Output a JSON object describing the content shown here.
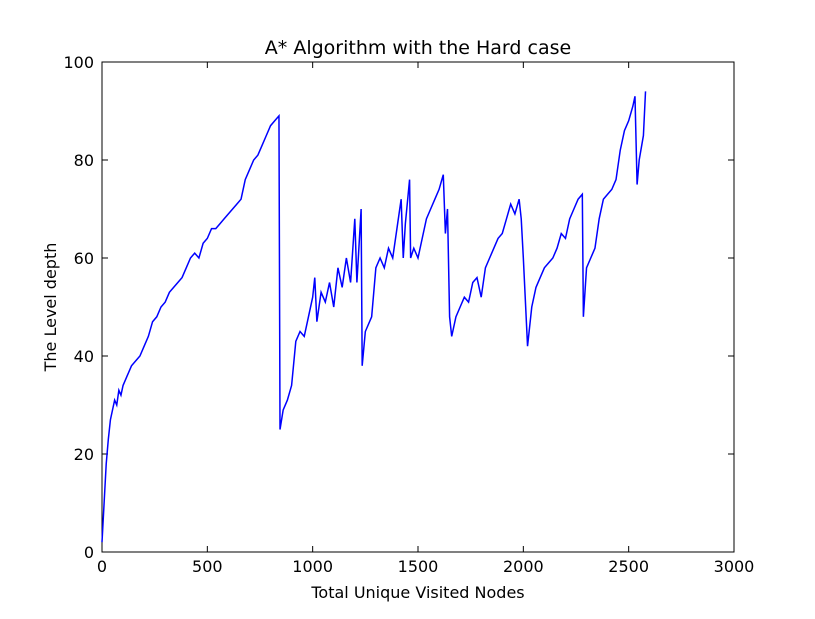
{
  "chart_data": {
    "type": "line",
    "title": "A* Algorithm with the Hard case",
    "xlabel": "Total Unique Visited Nodes",
    "ylabel": "The Level depth",
    "color": "#0000ff",
    "xlim": [
      0,
      3000
    ],
    "ylim": [
      0,
      100
    ],
    "xticks": [
      0,
      500,
      1000,
      1500,
      2000,
      2500,
      3000
    ],
    "yticks": [
      0,
      20,
      40,
      60,
      80,
      100
    ],
    "x": [
      0,
      10,
      20,
      30,
      40,
      50,
      60,
      70,
      80,
      90,
      100,
      120,
      140,
      160,
      180,
      200,
      220,
      240,
      260,
      280,
      300,
      320,
      340,
      360,
      380,
      400,
      420,
      440,
      460,
      480,
      500,
      520,
      540,
      560,
      580,
      600,
      620,
      640,
      660,
      680,
      700,
      720,
      740,
      760,
      780,
      800,
      820,
      840,
      845,
      860,
      880,
      900,
      920,
      940,
      960,
      980,
      1000,
      1010,
      1020,
      1040,
      1060,
      1080,
      1100,
      1120,
      1140,
      1160,
      1180,
      1200,
      1210,
      1230,
      1235,
      1250,
      1280,
      1300,
      1320,
      1340,
      1360,
      1380,
      1400,
      1420,
      1430,
      1440,
      1460,
      1465,
      1480,
      1500,
      1520,
      1540,
      1560,
      1580,
      1600,
      1620,
      1630,
      1640,
      1650,
      1660,
      1680,
      1700,
      1720,
      1740,
      1760,
      1780,
      1800,
      1820,
      1840,
      1860,
      1880,
      1900,
      1920,
      1940,
      1960,
      1980,
      1990,
      2000,
      2020,
      2040,
      2060,
      2080,
      2100,
      2120,
      2140,
      2160,
      2180,
      2200,
      2220,
      2240,
      2260,
      2280,
      2285,
      2300,
      2320,
      2340,
      2360,
      2380,
      2400,
      2420,
      2440,
      2460,
      2480,
      2500,
      2520,
      2530,
      2540,
      2550,
      2570,
      2580
    ],
    "values": [
      2,
      10,
      18,
      23,
      27,
      29,
      31,
      30,
      33,
      32,
      34,
      36,
      38,
      39,
      40,
      42,
      44,
      47,
      48,
      50,
      51,
      53,
      54,
      55,
      56,
      58,
      60,
      61,
      60,
      63,
      64,
      66,
      66,
      67,
      68,
      69,
      70,
      71,
      72,
      76,
      78,
      80,
      81,
      83,
      85,
      87,
      88,
      89,
      25,
      29,
      31,
      34,
      43,
      45,
      44,
      48,
      52,
      56,
      47,
      53,
      51,
      55,
      50,
      58,
      54,
      60,
      55,
      68,
      55,
      70,
      38,
      45,
      48,
      58,
      60,
      58,
      62,
      60,
      66,
      72,
      60,
      67,
      76,
      60,
      62,
      60,
      64,
      68,
      70,
      72,
      74,
      77,
      65,
      70,
      48,
      44,
      48,
      50,
      52,
      51,
      55,
      56,
      52,
      58,
      60,
      62,
      64,
      65,
      68,
      71,
      69,
      72,
      68,
      60,
      42,
      50,
      54,
      56,
      58,
      59,
      60,
      62,
      65,
      64,
      68,
      70,
      72,
      73,
      48,
      58,
      60,
      62,
      68,
      72,
      73,
      74,
      76,
      82,
      86,
      88,
      91,
      93,
      75,
      80,
      85,
      94
    ]
  }
}
